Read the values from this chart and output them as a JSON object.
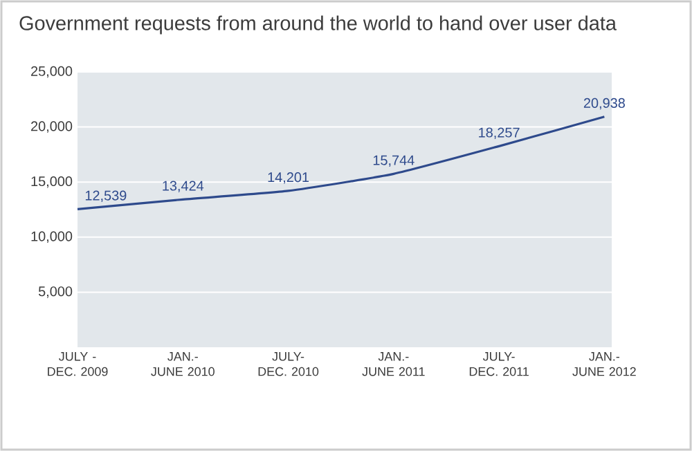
{
  "chart_data": {
    "type": "line",
    "title": "Government requests from around the world to hand over user data",
    "categories": [
      "JULY - DEC. 2009",
      "JAN.- JUNE 2010",
      "JULY- DEC. 2010",
      "JAN.- JUNE 2011",
      "JULY- DEC. 2011",
      "JAN.- JUNE 2012"
    ],
    "series": [
      {
        "color": "#2e4a8c",
        "values": [
          12539,
          13424,
          14201,
          15744,
          18257,
          20938
        ],
        "value_labels": [
          "12,539",
          "13,424",
          "14,201",
          "15,744",
          "18,257",
          "20,938"
        ]
      }
    ],
    "ylim": [
      0,
      25000
    ],
    "yticks": [
      {
        "value": 5000,
        "label": "5,000"
      },
      {
        "value": 10000,
        "label": "10,000"
      },
      {
        "value": 15000,
        "label": "15,000"
      },
      {
        "value": 20000,
        "label": "20,000"
      },
      {
        "value": 25000,
        "label": "25,000"
      }
    ],
    "grid": "y",
    "marker": "none",
    "line_style": "solid"
  }
}
